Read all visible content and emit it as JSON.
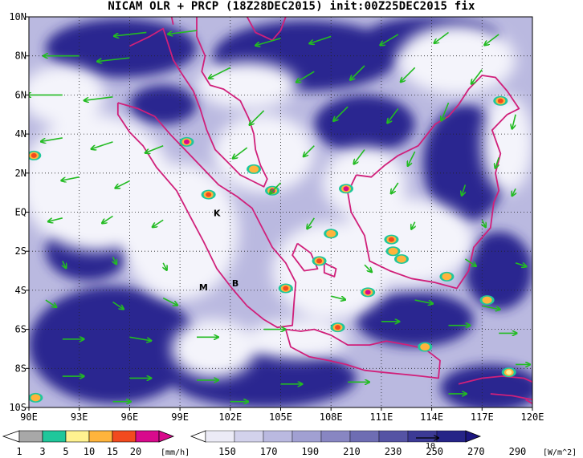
{
  "title": "NICAM OLR + PRCP (18Z28DEC2015) init:00Z25DEC2015 fix",
  "map": {
    "lon_range": [
      90,
      120
    ],
    "lat_range": [
      -10,
      10
    ],
    "lon_labels": [
      "90E",
      "93E",
      "96E",
      "99E",
      "102E",
      "105E",
      "108E",
      "111E",
      "114E",
      "117E",
      "120E"
    ],
    "lat_labels": [
      "10N",
      "8N",
      "6N",
      "4N",
      "2N",
      "EQ",
      "2S",
      "4S",
      "6S",
      "8S",
      "10S"
    ],
    "coast_color": "#d0207a",
    "wind_color": "#22bb22",
    "site_labels": [
      {
        "text": "K",
        "lon": 101.2,
        "lat": -0.2
      },
      {
        "text": "M",
        "lon": 100.4,
        "lat": -4.0
      },
      {
        "text": "B",
        "lon": 102.3,
        "lat": -3.8
      }
    ],
    "precip_cells": [
      {
        "lon": 99.4,
        "lat": 3.6,
        "v": 20
      },
      {
        "lon": 90.3,
        "lat": 2.9,
        "v": 15
      },
      {
        "lon": 100.7,
        "lat": 0.9,
        "v": 15
      },
      {
        "lon": 103.4,
        "lat": 2.2,
        "v": 10
      },
      {
        "lon": 104.5,
        "lat": 1.1,
        "v": 20
      },
      {
        "lon": 108.9,
        "lat": 1.2,
        "v": 20
      },
      {
        "lon": 108.0,
        "lat": -1.1,
        "v": 10
      },
      {
        "lon": 111.6,
        "lat": -1.4,
        "v": 15
      },
      {
        "lon": 111.7,
        "lat": -2.0,
        "v": 10
      },
      {
        "lon": 112.2,
        "lat": -2.4,
        "v": 10
      },
      {
        "lon": 107.3,
        "lat": -2.5,
        "v": 15
      },
      {
        "lon": 105.3,
        "lat": -3.9,
        "v": 15
      },
      {
        "lon": 110.2,
        "lat": -4.1,
        "v": 20
      },
      {
        "lon": 108.4,
        "lat": -5.9,
        "v": 15
      },
      {
        "lon": 114.9,
        "lat": -3.3,
        "v": 10
      },
      {
        "lon": 117.3,
        "lat": -4.5,
        "v": 10
      },
      {
        "lon": 118.1,
        "lat": 5.7,
        "v": 15
      },
      {
        "lon": 113.6,
        "lat": -6.9,
        "v": 10
      },
      {
        "lon": 90.4,
        "lat": -9.5,
        "v": 10
      },
      {
        "lon": 118.6,
        "lat": -8.2,
        "v": 5
      }
    ],
    "clear_sky_patches": [
      {
        "lon": 95.5,
        "lat": 8.4,
        "rx": 4.5,
        "ry": 1.5
      },
      {
        "lon": 106.5,
        "lat": 8.0,
        "rx": 5.5,
        "ry": 1.8
      },
      {
        "lon": 114.0,
        "lat": 9.0,
        "rx": 4.0,
        "ry": 1.0
      },
      {
        "lon": 110.0,
        "lat": 4.5,
        "rx": 3.0,
        "ry": 1.5
      },
      {
        "lon": 95.0,
        "lat": -6.8,
        "rx": 5.0,
        "ry": 3.0
      },
      {
        "lon": 113.0,
        "lat": -5.5,
        "rx": 3.5,
        "ry": 1.4
      },
      {
        "lon": 118.0,
        "lat": -3.0,
        "rx": 2.0,
        "ry": 2.0
      },
      {
        "lon": 116.0,
        "lat": 2.5,
        "rx": 2.5,
        "ry": 3.0
      },
      {
        "lon": 93.5,
        "lat": -2.0,
        "rx": 2.5,
        "ry": 1.5
      },
      {
        "lon": 104.0,
        "lat": -8.5,
        "rx": 5.5,
        "ry": 1.5
      },
      {
        "lon": 117.5,
        "lat": -9.0,
        "rx": 3.0,
        "ry": 1.2
      },
      {
        "lon": 98.0,
        "lat": 5.5,
        "rx": 2.0,
        "ry": 1.0
      }
    ],
    "cloud_patches": [
      {
        "lon": 94.0,
        "lat": 1.5,
        "rx": 4.5,
        "ry": 3.5
      },
      {
        "lon": 99.0,
        "lat": -1.0,
        "rx": 3.5,
        "ry": 3.5
      },
      {
        "lon": 104.0,
        "lat": 3.0,
        "rx": 3.0,
        "ry": 2.0
      },
      {
        "lon": 108.0,
        "lat": -3.0,
        "rx": 3.5,
        "ry": 2.5
      },
      {
        "lon": 112.5,
        "lat": -1.5,
        "rx": 4.0,
        "ry": 2.2
      },
      {
        "lon": 115.5,
        "lat": 7.8,
        "rx": 3.5,
        "ry": 1.8
      },
      {
        "lon": 106.0,
        "lat": -6.5,
        "rx": 3.0,
        "ry": 1.0
      },
      {
        "lon": 92.0,
        "lat": 6.0,
        "rx": 2.5,
        "ry": 1.5
      },
      {
        "lon": 110.0,
        "lat": 1.5,
        "rx": 2.5,
        "ry": 1.8
      },
      {
        "lon": 101.0,
        "lat": -7.0,
        "rx": 2.5,
        "ry": 1.5
      },
      {
        "lon": 103.0,
        "lat": 6.5,
        "rx": 3.0,
        "ry": 1.2
      },
      {
        "lon": 118.5,
        "lat": 3.5,
        "rx": 1.5,
        "ry": 2.5
      }
    ],
    "coastlines": [
      [
        [
          96.0,
          8.5
        ],
        [
          97.2,
          9.0
        ],
        [
          98.0,
          9.4
        ],
        [
          98.3,
          8.6
        ],
        [
          98.6,
          7.8
        ],
        [
          99.1,
          7.1
        ],
        [
          99.8,
          6.2
        ],
        [
          100.2,
          5.3
        ],
        [
          100.6,
          4.2
        ],
        [
          101.1,
          3.2
        ],
        [
          101.8,
          2.6
        ],
        [
          102.6,
          1.9
        ],
        [
          103.3,
          1.6
        ],
        [
          104.0,
          1.3
        ],
        [
          104.2,
          1.7
        ],
        [
          103.8,
          2.4
        ],
        [
          103.5,
          3.2
        ],
        [
          103.4,
          4.0
        ],
        [
          103.1,
          4.8
        ],
        [
          102.6,
          5.7
        ],
        [
          101.6,
          6.3
        ],
        [
          100.8,
          6.5
        ],
        [
          100.3,
          7.2
        ],
        [
          100.5,
          8.0
        ],
        [
          100.0,
          9.0
        ],
        [
          100.0,
          10.0
        ]
      ],
      [
        [
          95.3,
          5.6
        ],
        [
          96.5,
          5.3
        ],
        [
          97.5,
          4.9
        ],
        [
          98.4,
          4.0
        ],
        [
          99.3,
          3.2
        ],
        [
          100.3,
          2.3
        ],
        [
          101.3,
          1.4
        ],
        [
          102.4,
          0.8
        ],
        [
          103.3,
          0.2
        ],
        [
          103.9,
          -0.8
        ],
        [
          104.5,
          -1.8
        ],
        [
          105.3,
          -2.6
        ],
        [
          105.9,
          -3.6
        ],
        [
          105.8,
          -4.6
        ],
        [
          105.7,
          -5.8
        ],
        [
          104.8,
          -5.9
        ],
        [
          104.0,
          -5.5
        ],
        [
          103.0,
          -4.8
        ],
        [
          102.1,
          -3.9
        ],
        [
          101.2,
          -2.9
        ],
        [
          100.4,
          -1.5
        ],
        [
          99.6,
          -0.2
        ],
        [
          98.8,
          1.1
        ],
        [
          97.6,
          2.3
        ],
        [
          96.8,
          3.4
        ],
        [
          96.0,
          4.1
        ],
        [
          95.3,
          5.0
        ],
        [
          95.3,
          5.6
        ]
      ],
      [
        [
          105.3,
          -6.0
        ],
        [
          106.2,
          -6.1
        ],
        [
          107.0,
          -6.0
        ],
        [
          108.0,
          -6.3
        ],
        [
          109.0,
          -6.8
        ],
        [
          110.3,
          -6.8
        ],
        [
          111.3,
          -6.6
        ],
        [
          112.6,
          -6.8
        ],
        [
          113.6,
          -7.0
        ],
        [
          114.5,
          -7.6
        ],
        [
          114.4,
          -8.5
        ],
        [
          113.4,
          -8.4
        ],
        [
          112.3,
          -8.3
        ],
        [
          111.1,
          -8.2
        ],
        [
          110.0,
          -8.1
        ],
        [
          108.9,
          -7.8
        ],
        [
          107.9,
          -7.6
        ],
        [
          106.7,
          -7.4
        ],
        [
          105.6,
          -6.9
        ],
        [
          105.3,
          -6.0
        ]
      ],
      [
        [
          115.6,
          -8.8
        ],
        [
          117.0,
          -8.5
        ],
        [
          118.2,
          -8.4
        ],
        [
          119.5,
          -8.5
        ],
        [
          120.0,
          -8.7
        ]
      ],
      [
        [
          117.5,
          -9.3
        ],
        [
          118.8,
          -9.4
        ],
        [
          120.0,
          -9.6
        ]
      ],
      [
        [
          119.6,
          -9.6
        ],
        [
          120.0,
          -9.8
        ]
      ],
      [
        [
          106.0,
          -1.6
        ],
        [
          106.8,
          -2.1
        ],
        [
          107.2,
          -2.9
        ],
        [
          106.4,
          -3.0
        ],
        [
          105.7,
          -2.2
        ],
        [
          106.0,
          -1.6
        ]
      ],
      [
        [
          107.6,
          -2.6
        ],
        [
          108.3,
          -2.9
        ],
        [
          108.2,
          -3.3
        ],
        [
          107.6,
          -3.1
        ],
        [
          107.6,
          -2.6
        ]
      ],
      [
        [
          109.5,
          1.9
        ],
        [
          109.0,
          1.0
        ],
        [
          109.2,
          0.0
        ],
        [
          110.0,
          -1.2
        ],
        [
          110.3,
          -2.5
        ],
        [
          111.5,
          -3.0
        ],
        [
          112.8,
          -3.4
        ],
        [
          114.2,
          -3.6
        ],
        [
          115.5,
          -3.9
        ],
        [
          116.2,
          -3.0
        ],
        [
          116.5,
          -1.8
        ],
        [
          117.5,
          -0.8
        ],
        [
          117.7,
          0.5
        ],
        [
          118.0,
          1.1
        ],
        [
          117.8,
          2.0
        ],
        [
          118.1,
          3.0
        ],
        [
          117.6,
          4.2
        ],
        [
          118.5,
          5.0
        ],
        [
          119.2,
          5.3
        ],
        [
          118.5,
          6.2
        ],
        [
          117.8,
          6.9
        ],
        [
          117.0,
          7.0
        ],
        [
          116.2,
          6.3
        ],
        [
          115.6,
          5.5
        ],
        [
          115.0,
          4.9
        ],
        [
          114.2,
          4.5
        ],
        [
          113.2,
          3.4
        ],
        [
          112.0,
          2.9
        ],
        [
          111.2,
          2.4
        ],
        [
          110.4,
          1.8
        ],
        [
          109.5,
          1.9
        ]
      ],
      [
        [
          103.0,
          10.0
        ],
        [
          103.5,
          9.2
        ],
        [
          104.5,
          8.8
        ],
        [
          105.0,
          9.3
        ],
        [
          105.3,
          10.0
        ]
      ],
      [
        [
          98.5,
          10.0
        ],
        [
          98.6,
          9.6
        ]
      ]
    ],
    "winds": [
      {
        "lon": 97,
        "lat": 9.2,
        "u": -9,
        "v": -1
      },
      {
        "lon": 100,
        "lat": 9.3,
        "u": -8,
        "v": -1
      },
      {
        "lon": 105,
        "lat": 8.9,
        "u": -7,
        "v": -2
      },
      {
        "lon": 108,
        "lat": 9.0,
        "u": -6,
        "v": -2
      },
      {
        "lon": 112,
        "lat": 9.1,
        "u": -5,
        "v": -3
      },
      {
        "lon": 115,
        "lat": 9.2,
        "u": -4,
        "v": -3
      },
      {
        "lon": 118,
        "lat": 9.1,
        "u": -4,
        "v": -3
      },
      {
        "lon": 93,
        "lat": 8.0,
        "u": -10,
        "v": 0
      },
      {
        "lon": 96,
        "lat": 7.9,
        "u": -9,
        "v": -1
      },
      {
        "lon": 102,
        "lat": 7.4,
        "u": -6,
        "v": -3
      },
      {
        "lon": 107,
        "lat": 7.2,
        "u": -5,
        "v": -3
      },
      {
        "lon": 110,
        "lat": 7.5,
        "u": -4,
        "v": -4
      },
      {
        "lon": 113,
        "lat": 7.4,
        "u": -4,
        "v": -4
      },
      {
        "lon": 117,
        "lat": 7.3,
        "u": -3,
        "v": -4
      },
      {
        "lon": 92,
        "lat": 6.0,
        "u": -10,
        "v": 0
      },
      {
        "lon": 95,
        "lat": 5.9,
        "u": -8,
        "v": -1
      },
      {
        "lon": 104,
        "lat": 5.2,
        "u": -4,
        "v": -4
      },
      {
        "lon": 109,
        "lat": 5.4,
        "u": -4,
        "v": -4
      },
      {
        "lon": 112,
        "lat": 5.3,
        "u": -3,
        "v": -4
      },
      {
        "lon": 115,
        "lat": 5.6,
        "u": -2,
        "v": -5
      },
      {
        "lon": 119,
        "lat": 5.0,
        "u": -1,
        "v": -4
      },
      {
        "lon": 92,
        "lat": 3.8,
        "u": -6,
        "v": -1
      },
      {
        "lon": 95,
        "lat": 3.6,
        "u": -6,
        "v": -2
      },
      {
        "lon": 98,
        "lat": 3.4,
        "u": -5,
        "v": -2
      },
      {
        "lon": 103,
        "lat": 3.3,
        "u": -4,
        "v": -3
      },
      {
        "lon": 107,
        "lat": 3.4,
        "u": -3,
        "v": -3
      },
      {
        "lon": 110,
        "lat": 3.2,
        "u": -3,
        "v": -4
      },
      {
        "lon": 113,
        "lat": 3.1,
        "u": -2,
        "v": -4
      },
      {
        "lon": 118,
        "lat": 2.8,
        "u": -1,
        "v": -3
      },
      {
        "lon": 93,
        "lat": 1.8,
        "u": -5,
        "v": -1
      },
      {
        "lon": 96,
        "lat": 1.6,
        "u": -4,
        "v": -2
      },
      {
        "lon": 105,
        "lat": 1.5,
        "u": -3,
        "v": -3
      },
      {
        "lon": 112,
        "lat": 1.5,
        "u": -2,
        "v": -3
      },
      {
        "lon": 116,
        "lat": 1.4,
        "u": -1,
        "v": -3
      },
      {
        "lon": 119,
        "lat": 1.2,
        "u": -1,
        "v": -2
      },
      {
        "lon": 92,
        "lat": -0.3,
        "u": -4,
        "v": -1
      },
      {
        "lon": 95,
        "lat": -0.2,
        "u": -3,
        "v": -2
      },
      {
        "lon": 98,
        "lat": -0.4,
        "u": -3,
        "v": -2
      },
      {
        "lon": 107,
        "lat": -0.3,
        "u": -2,
        "v": -3
      },
      {
        "lon": 113,
        "lat": -0.5,
        "u": -1,
        "v": -2
      },
      {
        "lon": 117,
        "lat": -0.4,
        "u": 1,
        "v": -2
      },
      {
        "lon": 92,
        "lat": -2.5,
        "u": 1,
        "v": -2
      },
      {
        "lon": 95,
        "lat": -2.3,
        "u": 1,
        "v": -2
      },
      {
        "lon": 98,
        "lat": -2.6,
        "u": 1,
        "v": -2
      },
      {
        "lon": 110,
        "lat": -2.7,
        "u": 2,
        "v": -2
      },
      {
        "lon": 116,
        "lat": -2.4,
        "u": 3,
        "v": -2
      },
      {
        "lon": 119,
        "lat": -2.6,
        "u": 3,
        "v": -1
      },
      {
        "lon": 91,
        "lat": -4.5,
        "u": 3,
        "v": -2
      },
      {
        "lon": 95,
        "lat": -4.6,
        "u": 3,
        "v": -2
      },
      {
        "lon": 98,
        "lat": -4.4,
        "u": 4,
        "v": -2
      },
      {
        "lon": 108,
        "lat": -4.3,
        "u": 4,
        "v": -1
      },
      {
        "lon": 113,
        "lat": -4.5,
        "u": 5,
        "v": -1
      },
      {
        "lon": 117,
        "lat": -4.8,
        "u": 5,
        "v": -1
      },
      {
        "lon": 92,
        "lat": -6.5,
        "u": 6,
        "v": 0
      },
      {
        "lon": 96,
        "lat": -6.4,
        "u": 6,
        "v": -1
      },
      {
        "lon": 100,
        "lat": -6.4,
        "u": 6,
        "v": 0
      },
      {
        "lon": 104,
        "lat": -6.0,
        "u": 6,
        "v": 0
      },
      {
        "lon": 111,
        "lat": -5.6,
        "u": 5,
        "v": 0
      },
      {
        "lon": 115,
        "lat": -5.8,
        "u": 6,
        "v": 0
      },
      {
        "lon": 118,
        "lat": -6.2,
        "u": 5,
        "v": 0
      },
      {
        "lon": 92,
        "lat": -8.4,
        "u": 6,
        "v": 0
      },
      {
        "lon": 96,
        "lat": -8.5,
        "u": 6,
        "v": 0
      },
      {
        "lon": 100,
        "lat": -8.6,
        "u": 6,
        "v": 0
      },
      {
        "lon": 105,
        "lat": -8.8,
        "u": 6,
        "v": 0
      },
      {
        "lon": 109,
        "lat": -8.7,
        "u": 6,
        "v": 0
      },
      {
        "lon": 115,
        "lat": -9.3,
        "u": 5,
        "v": 0
      },
      {
        "lon": 119,
        "lat": -7.8,
        "u": 4,
        "v": 0
      },
      {
        "lon": 95,
        "lat": -9.7,
        "u": 5,
        "v": 0
      },
      {
        "lon": 102,
        "lat": -9.7,
        "u": 5,
        "v": 0
      }
    ]
  },
  "vector_reference": {
    "label": "10",
    "u": 10
  },
  "legend_precip": {
    "unit": "[mm/h]",
    "labels": [
      "1",
      "3",
      "5",
      "10",
      "15",
      "20"
    ],
    "colors": [
      "#a8a8a8",
      "#1fc79b",
      "#fff290",
      "#ffb43c",
      "#f24a1e",
      "#d80a8c"
    ]
  },
  "legend_olr": {
    "unit": "[W/m^2]",
    "labels": [
      "150",
      "170",
      "190",
      "210",
      "230",
      "250",
      "270",
      "290"
    ],
    "colors": [
      "#ffffff",
      "#ecebf6",
      "#d3d2ec",
      "#bab9e0",
      "#a1a0d2",
      "#8886c2",
      "#6e6db3",
      "#5553a4",
      "#3c3a95",
      "#262487",
      "#1c167f"
    ]
  }
}
